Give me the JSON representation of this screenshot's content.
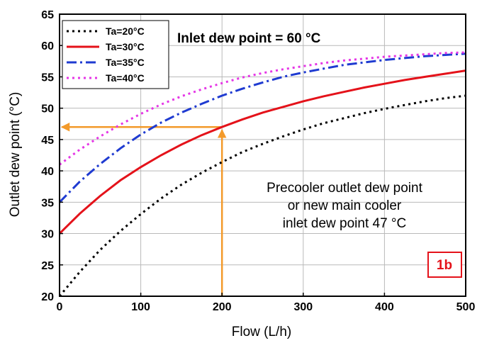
{
  "chart_data": {
    "type": "line",
    "xlabel": "Flow (L/h)",
    "ylabel": "Outlet dew point (°C)",
    "xlim": [
      0,
      500
    ],
    "ylim": [
      20,
      65
    ],
    "x_ticks": [
      0,
      100,
      200,
      300,
      400,
      500
    ],
    "y_ticks": [
      20,
      25,
      30,
      35,
      40,
      45,
      50,
      55,
      60,
      65
    ],
    "grid": true,
    "legend_position": "top-left",
    "x": [
      0,
      25,
      50,
      75,
      100,
      125,
      150,
      175,
      200,
      225,
      250,
      275,
      300,
      325,
      350,
      375,
      400,
      425,
      450,
      475,
      500
    ],
    "series": [
      {
        "name": "Ta=20°C",
        "color": "#000000",
        "dash": "dotted",
        "values": [
          20.0,
          23.9,
          27.4,
          30.4,
          33.1,
          35.6,
          37.8,
          39.7,
          41.4,
          43.0,
          44.3,
          45.5,
          46.6,
          47.6,
          48.4,
          49.2,
          49.9,
          50.5,
          51.1,
          51.6,
          52.0
        ]
      },
      {
        "name": "Ta=30°C",
        "color": "#e4121a",
        "dash": "solid",
        "values": [
          30.0,
          33.2,
          36.0,
          38.5,
          40.6,
          42.5,
          44.2,
          45.7,
          47.0,
          48.2,
          49.3,
          50.2,
          51.1,
          51.9,
          52.6,
          53.3,
          53.9,
          54.5,
          55.0,
          55.5,
          56.0
        ]
      },
      {
        "name": "Ta=35°C",
        "color": "#1f3bd1",
        "dash": "dashdot",
        "values": [
          35.0,
          38.3,
          41.1,
          43.6,
          45.8,
          47.7,
          49.3,
          50.7,
          52.0,
          53.1,
          54.1,
          55.0,
          55.7,
          56.3,
          56.9,
          57.3,
          57.7,
          58.0,
          58.3,
          58.5,
          58.7
        ]
      },
      {
        "name": "Ta=40°C",
        "color": "#e536e6",
        "dash": "dotted",
        "values": [
          41.0,
          43.4,
          45.5,
          47.4,
          49.1,
          50.6,
          51.9,
          53.0,
          54.0,
          54.9,
          55.6,
          56.2,
          56.7,
          57.2,
          57.6,
          57.9,
          58.2,
          58.4,
          58.6,
          58.8,
          58.9
        ]
      }
    ],
    "reference_lines": {
      "color": "#f39a2b",
      "vertical_x": 200,
      "horizontal_y": 47
    },
    "annotations": {
      "inlet": "Inlet dew point = 60 °C",
      "precooler_line1": "Precooler outlet dew point",
      "precooler_line2": "or new main cooler",
      "precooler_line3": "inlet dew point 47 °C",
      "panel_label": "1b"
    }
  }
}
